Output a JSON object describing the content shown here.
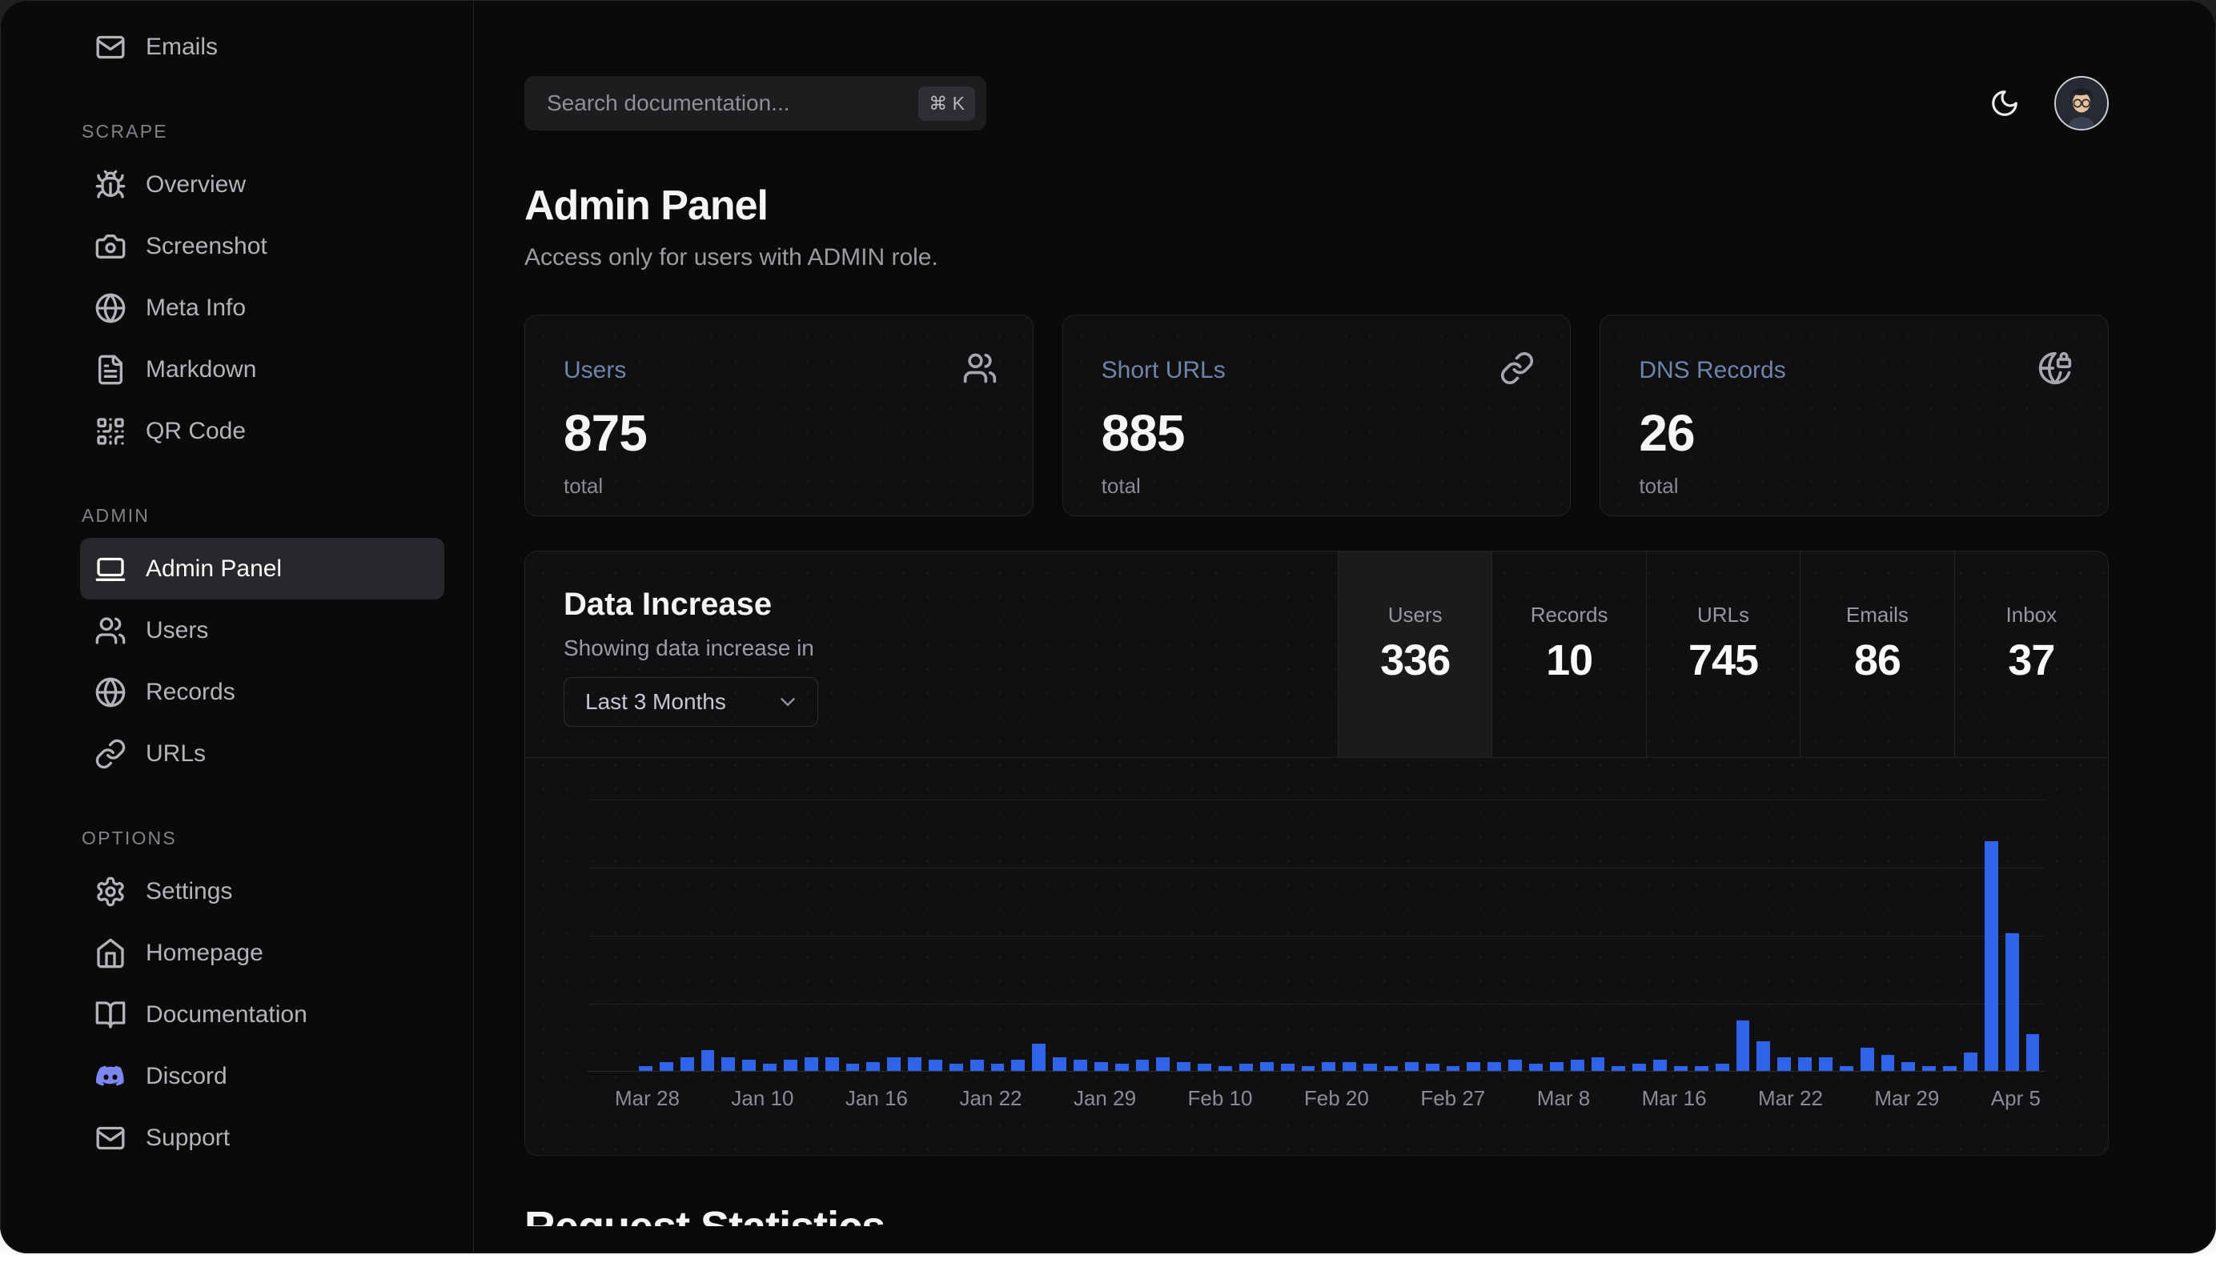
{
  "topbar": {
    "search_placeholder": "Search documentation...",
    "shortcut": "⌘ K"
  },
  "page": {
    "title": "Admin Panel",
    "subtitle": "Access only for users with ADMIN role."
  },
  "sidebar": {
    "top_items": [
      {
        "label": "Emails",
        "icon": "mail"
      }
    ],
    "sections": [
      {
        "label": "SCRAPE",
        "items": [
          {
            "label": "Overview",
            "icon": "bug"
          },
          {
            "label": "Screenshot",
            "icon": "camera"
          },
          {
            "label": "Meta Info",
            "icon": "globe"
          },
          {
            "label": "Markdown",
            "icon": "file-text"
          },
          {
            "label": "QR Code",
            "icon": "qr-code"
          }
        ]
      },
      {
        "label": "ADMIN",
        "items": [
          {
            "label": "Admin Panel",
            "icon": "laptop",
            "active": true
          },
          {
            "label": "Users",
            "icon": "users"
          },
          {
            "label": "Records",
            "icon": "globe"
          },
          {
            "label": "URLs",
            "icon": "link"
          }
        ]
      },
      {
        "label": "OPTIONS",
        "items": [
          {
            "label": "Settings",
            "icon": "gear"
          },
          {
            "label": "Homepage",
            "icon": "home"
          },
          {
            "label": "Documentation",
            "icon": "book-open"
          },
          {
            "label": "Discord",
            "icon": "discord"
          },
          {
            "label": "Support",
            "icon": "mail"
          }
        ]
      }
    ]
  },
  "stat_cards": [
    {
      "title": "Users",
      "value": "875",
      "caption": "total",
      "icon": "users"
    },
    {
      "title": "Short URLs",
      "value": "885",
      "caption": "total",
      "icon": "link"
    },
    {
      "title": "DNS Records",
      "value": "26",
      "caption": "total",
      "icon": "globe-lock"
    }
  ],
  "data_increase": {
    "title": "Data Increase",
    "subtitle": "Showing data increase in",
    "range_selected": "Last 3 Months",
    "tabs": [
      {
        "label": "Users",
        "value": "336",
        "active": true
      },
      {
        "label": "Records",
        "value": "10",
        "active": false
      },
      {
        "label": "URLs",
        "value": "745",
        "active": false
      },
      {
        "label": "Emails",
        "value": "86",
        "active": false
      },
      {
        "label": "Inbox",
        "value": "37",
        "active": false
      }
    ]
  },
  "chart_data": {
    "type": "bar",
    "title": "Data Increase",
    "series_label": "Users",
    "x_tick_labels": [
      "Mar 28",
      "Jan 10",
      "Jan 16",
      "Jan 22",
      "Jan 29",
      "Feb 10",
      "Feb 20",
      "Feb 27",
      "Mar 8",
      "Mar 16",
      "Mar 22",
      "Mar 29",
      "Apr 5"
    ],
    "values": [
      2,
      4,
      6,
      9,
      6,
      5,
      3,
      5,
      6,
      6,
      3,
      4,
      6,
      6,
      5,
      3,
      5,
      3,
      5,
      12,
      6,
      5,
      4,
      3,
      5,
      6,
      4,
      3,
      2,
      3,
      4,
      3,
      2,
      4,
      4,
      3,
      2,
      4,
      3,
      2,
      4,
      4,
      5,
      3,
      4,
      5,
      6,
      2,
      3,
      5,
      2,
      2,
      3,
      22,
      13,
      6,
      6,
      6,
      2,
      10,
      7,
      4,
      2,
      2,
      8,
      100,
      60,
      16
    ],
    "value_unit": "relative bar height, percent of tallest bar",
    "ylim": [
      0,
      100
    ],
    "bar_color": "#2e63ea",
    "grid": "4 horizontal gridlines above baseline",
    "legend": "none"
  },
  "below": {
    "heading": "Request Statistics"
  },
  "colors": {
    "accent_blue": "#2e63ea",
    "card_title_blue": "#6e84a8",
    "discord_purple": "#7b87ee",
    "window_bg": "#0a0a0b",
    "card_bg": "#101013"
  }
}
